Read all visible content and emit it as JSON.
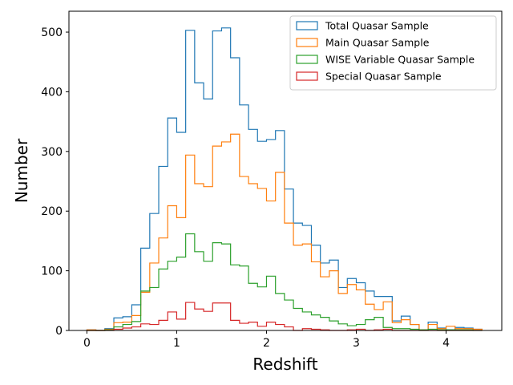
{
  "chart_data": {
    "type": "step-histogram",
    "title": "",
    "xlabel": "Redshift",
    "ylabel": "Number",
    "xlim": [
      -0.2,
      4.62
    ],
    "ylim": [
      0,
      535
    ],
    "x_ticks": [
      0,
      1,
      2,
      3,
      4
    ],
    "y_ticks": [
      0,
      100,
      200,
      300,
      400,
      500
    ],
    "bin_edges": [
      0.0,
      0.1,
      0.2,
      0.3,
      0.4,
      0.5,
      0.6,
      0.7,
      0.8,
      0.9,
      1.0,
      1.1,
      1.2,
      1.3,
      1.4,
      1.5,
      1.6,
      1.7,
      1.8,
      1.9,
      2.0,
      2.1,
      2.2,
      2.3,
      2.4,
      2.5,
      2.6,
      2.7,
      2.8,
      2.9,
      3.0,
      3.1,
      3.2,
      3.3,
      3.4,
      3.5,
      3.6,
      3.7,
      3.8,
      3.9,
      4.0,
      4.1,
      4.2,
      4.3,
      4.4
    ],
    "legend_position": "top-right",
    "grid": false,
    "series": [
      {
        "name": "Total Quasar Sample",
        "color": "#1f77b4",
        "values": [
          1,
          0,
          3,
          21,
          23,
          43,
          138,
          196,
          275,
          356,
          332,
          503,
          415,
          388,
          502,
          507,
          457,
          378,
          337,
          317,
          320,
          335,
          237,
          180,
          176,
          143,
          113,
          118,
          72,
          87,
          80,
          66,
          57,
          57,
          16,
          24,
          10,
          1,
          14,
          4,
          1,
          5,
          4,
          2
        ]
      },
      {
        "name": "Main Quasar Sample",
        "color": "#ff7f0e",
        "values": [
          1,
          0,
          2,
          13,
          14,
          25,
          64,
          113,
          155,
          209,
          189,
          294,
          246,
          241,
          309,
          316,
          329,
          258,
          246,
          238,
          217,
          265,
          180,
          143,
          145,
          115,
          90,
          100,
          62,
          77,
          68,
          44,
          35,
          48,
          13,
          18,
          10,
          1,
          10,
          3,
          7,
          3,
          3,
          2
        ]
      },
      {
        "name": "WISE Variable Quasar Sample",
        "color": "#2ca02c",
        "values": [
          0,
          0,
          1,
          6,
          10,
          15,
          66,
          72,
          103,
          116,
          123,
          162,
          132,
          116,
          147,
          145,
          110,
          108,
          79,
          73,
          91,
          62,
          51,
          37,
          31,
          26,
          22,
          16,
          11,
          8,
          10,
          18,
          22,
          5,
          3,
          3,
          2,
          1,
          2,
          1,
          1,
          1,
          1,
          0
        ]
      },
      {
        "name": "Special Quasar Sample",
        "color": "#d62728",
        "values": [
          0,
          0,
          0,
          2,
          4,
          6,
          11,
          10,
          17,
          31,
          19,
          47,
          36,
          32,
          46,
          46,
          17,
          12,
          14,
          7,
          14,
          10,
          6,
          0,
          3,
          2,
          1,
          0,
          0,
          1,
          2,
          0,
          1,
          2,
          0,
          0,
          0,
          0,
          0,
          0,
          0,
          0,
          0,
          0
        ]
      }
    ]
  }
}
